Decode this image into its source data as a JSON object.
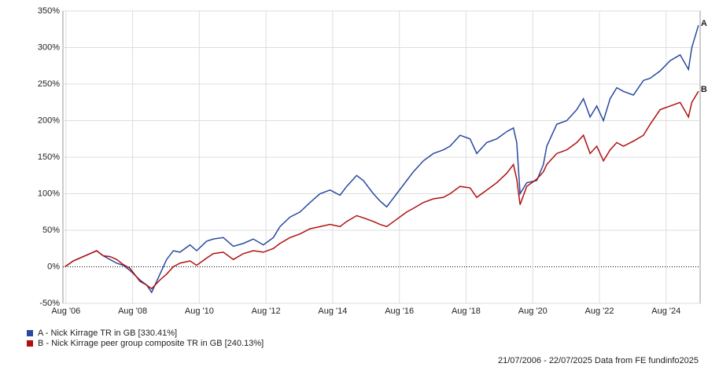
{
  "chart_data": {
    "type": "line",
    "x": [
      2006.55,
      2006.8,
      2007.0,
      2007.3,
      2007.5,
      2007.7,
      2007.9,
      2008.1,
      2008.3,
      2008.5,
      2008.8,
      2009.0,
      2009.15,
      2009.4,
      2009.6,
      2009.8,
      2010.0,
      2010.3,
      2010.5,
      2010.8,
      2011.0,
      2011.3,
      2011.6,
      2011.9,
      2012.2,
      2012.5,
      2012.8,
      2013.0,
      2013.3,
      2013.6,
      2013.9,
      2014.2,
      2014.5,
      2014.8,
      2015.0,
      2015.3,
      2015.5,
      2015.8,
      2016.0,
      2016.2,
      2016.5,
      2016.8,
      2017.0,
      2017.3,
      2017.6,
      2017.9,
      2018.1,
      2018.4,
      2018.7,
      2018.9,
      2019.2,
      2019.5,
      2019.8,
      2020.0,
      2020.1,
      2020.2,
      2020.4,
      2020.7,
      2020.9,
      2021.0,
      2021.3,
      2021.6,
      2021.9,
      2022.1,
      2022.3,
      2022.5,
      2022.7,
      2022.9,
      2023.1,
      2023.3,
      2023.6,
      2023.9,
      2024.1,
      2024.4,
      2024.7,
      2025.0,
      2025.25,
      2025.35,
      2025.55
    ],
    "series": [
      {
        "name": "A - Nick Kirrage TR in GB [330.41%]",
        "label": "A",
        "color": "#2a4aa0",
        "values": [
          0,
          8,
          12,
          18,
          22,
          15,
          10,
          5,
          2,
          -5,
          -18,
          -25,
          -35,
          -10,
          10,
          22,
          20,
          30,
          22,
          35,
          38,
          40,
          28,
          32,
          38,
          30,
          40,
          55,
          68,
          75,
          88,
          100,
          105,
          98,
          110,
          125,
          118,
          100,
          90,
          82,
          100,
          118,
          130,
          145,
          155,
          160,
          165,
          180,
          175,
          155,
          170,
          175,
          185,
          190,
          170,
          100,
          115,
          118,
          140,
          165,
          195,
          200,
          215,
          230,
          205,
          220,
          200,
          230,
          245,
          240,
          235,
          255,
          258,
          268,
          282,
          290,
          270,
          300,
          330.41
        ]
      },
      {
        "name": "B - Nick Kirrage peer group composite TR in GB [240.13%]",
        "label": "B",
        "color": "#b01010",
        "values": [
          0,
          8,
          12,
          18,
          22,
          15,
          14,
          10,
          3,
          -2,
          -20,
          -25,
          -30,
          -18,
          -10,
          0,
          5,
          8,
          2,
          12,
          18,
          20,
          10,
          18,
          22,
          20,
          25,
          32,
          40,
          45,
          52,
          55,
          58,
          55,
          62,
          70,
          67,
          62,
          58,
          55,
          65,
          75,
          80,
          88,
          93,
          95,
          100,
          110,
          108,
          95,
          105,
          115,
          128,
          140,
          120,
          85,
          110,
          120,
          130,
          140,
          155,
          160,
          170,
          180,
          155,
          165,
          145,
          160,
          170,
          165,
          172,
          180,
          195,
          215,
          220,
          225,
          205,
          225,
          240.13
        ]
      }
    ],
    "xlim": [
      2006.49,
      2025.6
    ],
    "xticks": [
      {
        "value": 2006.58,
        "label": "Aug '06"
      },
      {
        "value": 2008.58,
        "label": "Aug '08"
      },
      {
        "value": 2010.58,
        "label": "Aug '10"
      },
      {
        "value": 2012.58,
        "label": "Aug '12"
      },
      {
        "value": 2014.58,
        "label": "Aug '14"
      },
      {
        "value": 2016.58,
        "label": "Aug '16"
      },
      {
        "value": 2018.58,
        "label": "Aug '18"
      },
      {
        "value": 2020.58,
        "label": "Aug '20"
      },
      {
        "value": 2022.58,
        "label": "Aug '22"
      },
      {
        "value": 2024.58,
        "label": "Aug '24"
      }
    ],
    "ylim": [
      -50,
      350
    ],
    "yticks": [
      {
        "value": -50,
        "label": "-50%"
      },
      {
        "value": 0,
        "label": "0%"
      },
      {
        "value": 50,
        "label": "50%"
      },
      {
        "value": 100,
        "label": "100%"
      },
      {
        "value": 150,
        "label": "150%"
      },
      {
        "value": 200,
        "label": "200%"
      },
      {
        "value": 250,
        "label": "250%"
      },
      {
        "value": 300,
        "label": "300%"
      },
      {
        "value": 350,
        "label": "350%"
      }
    ],
    "grid": true,
    "footer": "21/07/2006 - 22/07/2025 Data from FE fundinfo2025"
  }
}
